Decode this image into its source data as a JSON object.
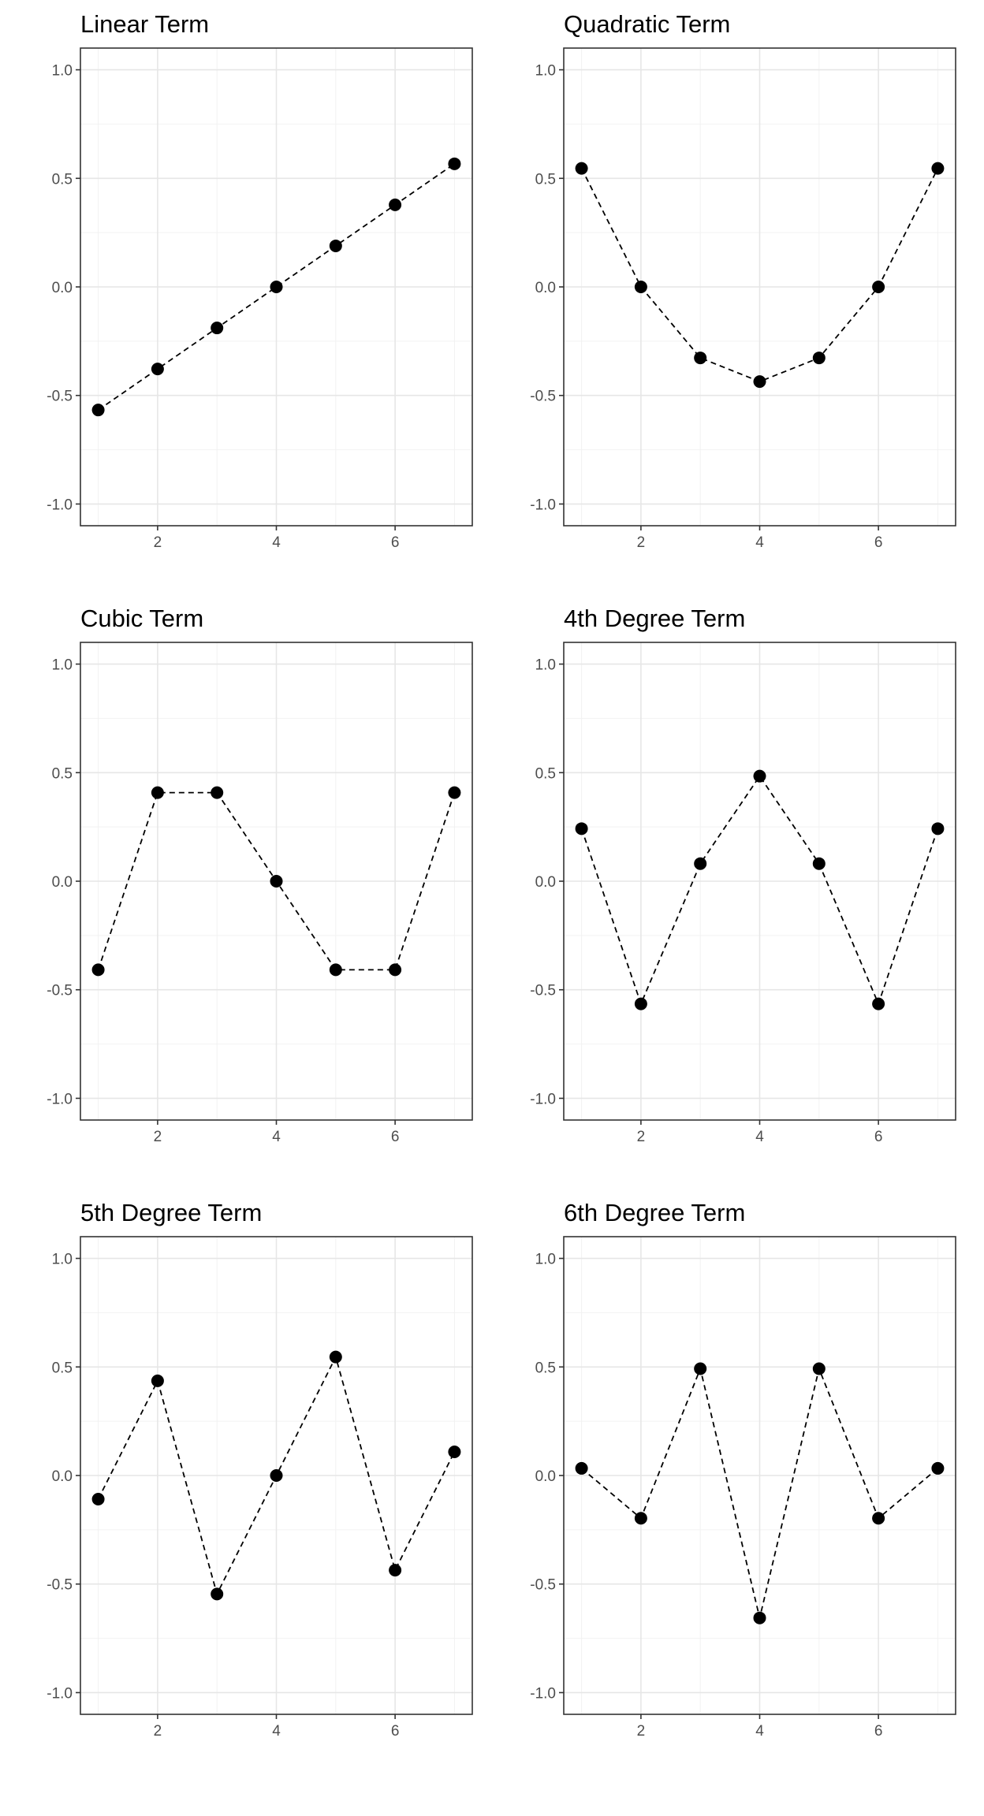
{
  "chart_data": [
    {
      "type": "line",
      "title": "Linear Term",
      "x": [
        1,
        2,
        3,
        4,
        5,
        6,
        7
      ],
      "values": [
        -0.567,
        -0.378,
        -0.189,
        0.0,
        0.189,
        0.378,
        0.567
      ],
      "xlim": [
        0.7,
        7.3
      ],
      "ylim": [
        -1.1,
        1.1
      ],
      "x_ticks": [
        2,
        4,
        6
      ],
      "y_ticks": [
        "-1.0",
        "-0.5",
        "0.0",
        "0.5",
        "1.0"
      ],
      "line_style": "dashed",
      "grid": true
    },
    {
      "type": "line",
      "title": "Quadratic Term",
      "x": [
        1,
        2,
        3,
        4,
        5,
        6,
        7
      ],
      "values": [
        0.546,
        0.0,
        -0.327,
        -0.436,
        -0.327,
        0.0,
        0.546
      ],
      "xlim": [
        0.7,
        7.3
      ],
      "ylim": [
        -1.1,
        1.1
      ],
      "x_ticks": [
        2,
        4,
        6
      ],
      "y_ticks": [
        "-1.0",
        "-0.5",
        "0.0",
        "0.5",
        "1.0"
      ],
      "line_style": "dashed",
      "grid": true
    },
    {
      "type": "line",
      "title": "Cubic Term",
      "x": [
        1,
        2,
        3,
        4,
        5,
        6,
        7
      ],
      "values": [
        -0.408,
        0.408,
        0.408,
        0.0,
        -0.408,
        -0.408,
        0.408
      ],
      "xlim": [
        0.7,
        7.3
      ],
      "ylim": [
        -1.1,
        1.1
      ],
      "x_ticks": [
        2,
        4,
        6
      ],
      "y_ticks": [
        "-1.0",
        "-0.5",
        "0.0",
        "0.5",
        "1.0"
      ],
      "line_style": "dashed",
      "grid": true
    },
    {
      "type": "line",
      "title": "4th Degree Term",
      "x": [
        1,
        2,
        3,
        4,
        5,
        6,
        7
      ],
      "values": [
        0.242,
        -0.565,
        0.081,
        0.484,
        0.081,
        -0.565,
        0.242
      ],
      "xlim": [
        0.7,
        7.3
      ],
      "ylim": [
        -1.1,
        1.1
      ],
      "x_ticks": [
        2,
        4,
        6
      ],
      "y_ticks": [
        "-1.0",
        "-0.5",
        "0.0",
        "0.5",
        "1.0"
      ],
      "line_style": "dashed",
      "grid": true
    },
    {
      "type": "line",
      "title": "5th Degree Term",
      "x": [
        1,
        2,
        3,
        4,
        5,
        6,
        7
      ],
      "values": [
        -0.109,
        0.436,
        -0.546,
        0.0,
        0.546,
        -0.436,
        0.109
      ],
      "xlim": [
        0.7,
        7.3
      ],
      "ylim": [
        -1.1,
        1.1
      ],
      "x_ticks": [
        2,
        4,
        6
      ],
      "y_ticks": [
        "-1.0",
        "-0.5",
        "0.0",
        "0.5",
        "1.0"
      ],
      "line_style": "dashed",
      "grid": true
    },
    {
      "type": "line",
      "title": "6th Degree Term",
      "x": [
        1,
        2,
        3,
        4,
        5,
        6,
        7
      ],
      "values": [
        0.033,
        -0.197,
        0.492,
        -0.656,
        0.492,
        -0.197,
        0.033
      ],
      "xlim": [
        0.7,
        7.3
      ],
      "ylim": [
        -1.1,
        1.1
      ],
      "x_ticks": [
        2,
        4,
        6
      ],
      "y_ticks": [
        "-1.0",
        "-0.5",
        "0.0",
        "0.5",
        "1.0"
      ],
      "line_style": "dashed",
      "grid": true
    }
  ],
  "colors": {
    "background": "#ffffff",
    "panel_border": "#333333",
    "grid_major": "#e6e6e6",
    "grid_minor": "#f2f2f2",
    "line": "#000000",
    "point": "#000000",
    "tick_text": "#4d4d4d",
    "title_text": "#000000"
  }
}
